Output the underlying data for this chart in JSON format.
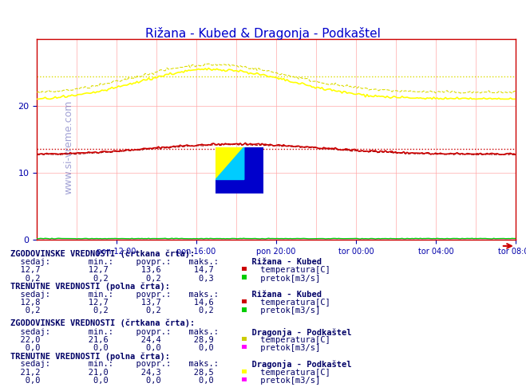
{
  "title": "Rižana - Kubed & Dragonja - Podkaštel",
  "title_color": "#0000cc",
  "bg_color": "#ffffff",
  "plot_bg_color": "#ffffff",
  "grid_color": "#ffaaaa",
  "xlabel_color": "#0000aa",
  "ylabel_color": "#0000aa",
  "ylim": [
    0,
    30
  ],
  "yticks": [
    0,
    10,
    20
  ],
  "n_points": 288,
  "x_tick_labels": [
    "pon 12:00",
    "pon 16:00",
    "pon 20:00",
    "tor 00:00",
    "tor 04:00",
    "tor 08:00"
  ],
  "watermark": "www.si-vreme.com",
  "rizana_temp_hist_avg": 13.6,
  "rizana_temp_curr_avg": 13.7,
  "dragonja_temp_hist_avg": 24.4,
  "dragonja_temp_curr_avg": 24.3,
  "rizana_temp_hist_min": 12.7,
  "rizana_temp_hist_max": 14.7,
  "rizana_temp_curr_min": 12.7,
  "rizana_temp_curr_max": 14.6,
  "rizana_pretok_hist_min": 0.2,
  "rizana_pretok_hist_max": 0.3,
  "rizana_pretok_hist_avg": 0.2,
  "rizana_pretok_curr_min": 0.2,
  "rizana_pretok_curr_max": 0.2,
  "rizana_pretok_curr_avg": 0.2,
  "dragonja_temp_hist_min": 21.6,
  "dragonja_temp_hist_max": 28.9,
  "dragonja_temp_curr_min": 21.0,
  "dragonja_temp_curr_max": 28.5,
  "dragonja_pretok_hist_min": 0.0,
  "dragonja_pretok_hist_max": 0.0,
  "dragonja_pretok_hist_avg": 0.0,
  "dragonja_pretok_curr_min": 0.0,
  "dragonja_pretok_curr_max": 0.0,
  "dragonja_pretok_curr_avg": 0.0,
  "rizana_curr_sedaj": 12.8,
  "rizana_hist_sedaj": 12.7,
  "dragonja_curr_sedaj": 21.2,
  "dragonja_hist_sedaj": 22.0,
  "rizana_pretok_curr_sedaj": 0.2,
  "rizana_pretok_hist_sedaj": 0.2,
  "dragonja_pretok_curr_sedaj": 0.0,
  "dragonja_pretok_hist_sedaj": 0.0,
  "color_rizana_temp": "#cc0000",
  "color_rizana_pretok": "#00cc00",
  "color_dragonja_temp": "#ffff00",
  "color_dragonja_pretok": "#ff00ff",
  "color_axis": "#cc0000",
  "logo_colors": [
    "#ffff00",
    "#00ccff",
    "#0000cc"
  ],
  "table_header_color": "#000066",
  "table_label_color": "#000066",
  "table_value_color": "#000066"
}
